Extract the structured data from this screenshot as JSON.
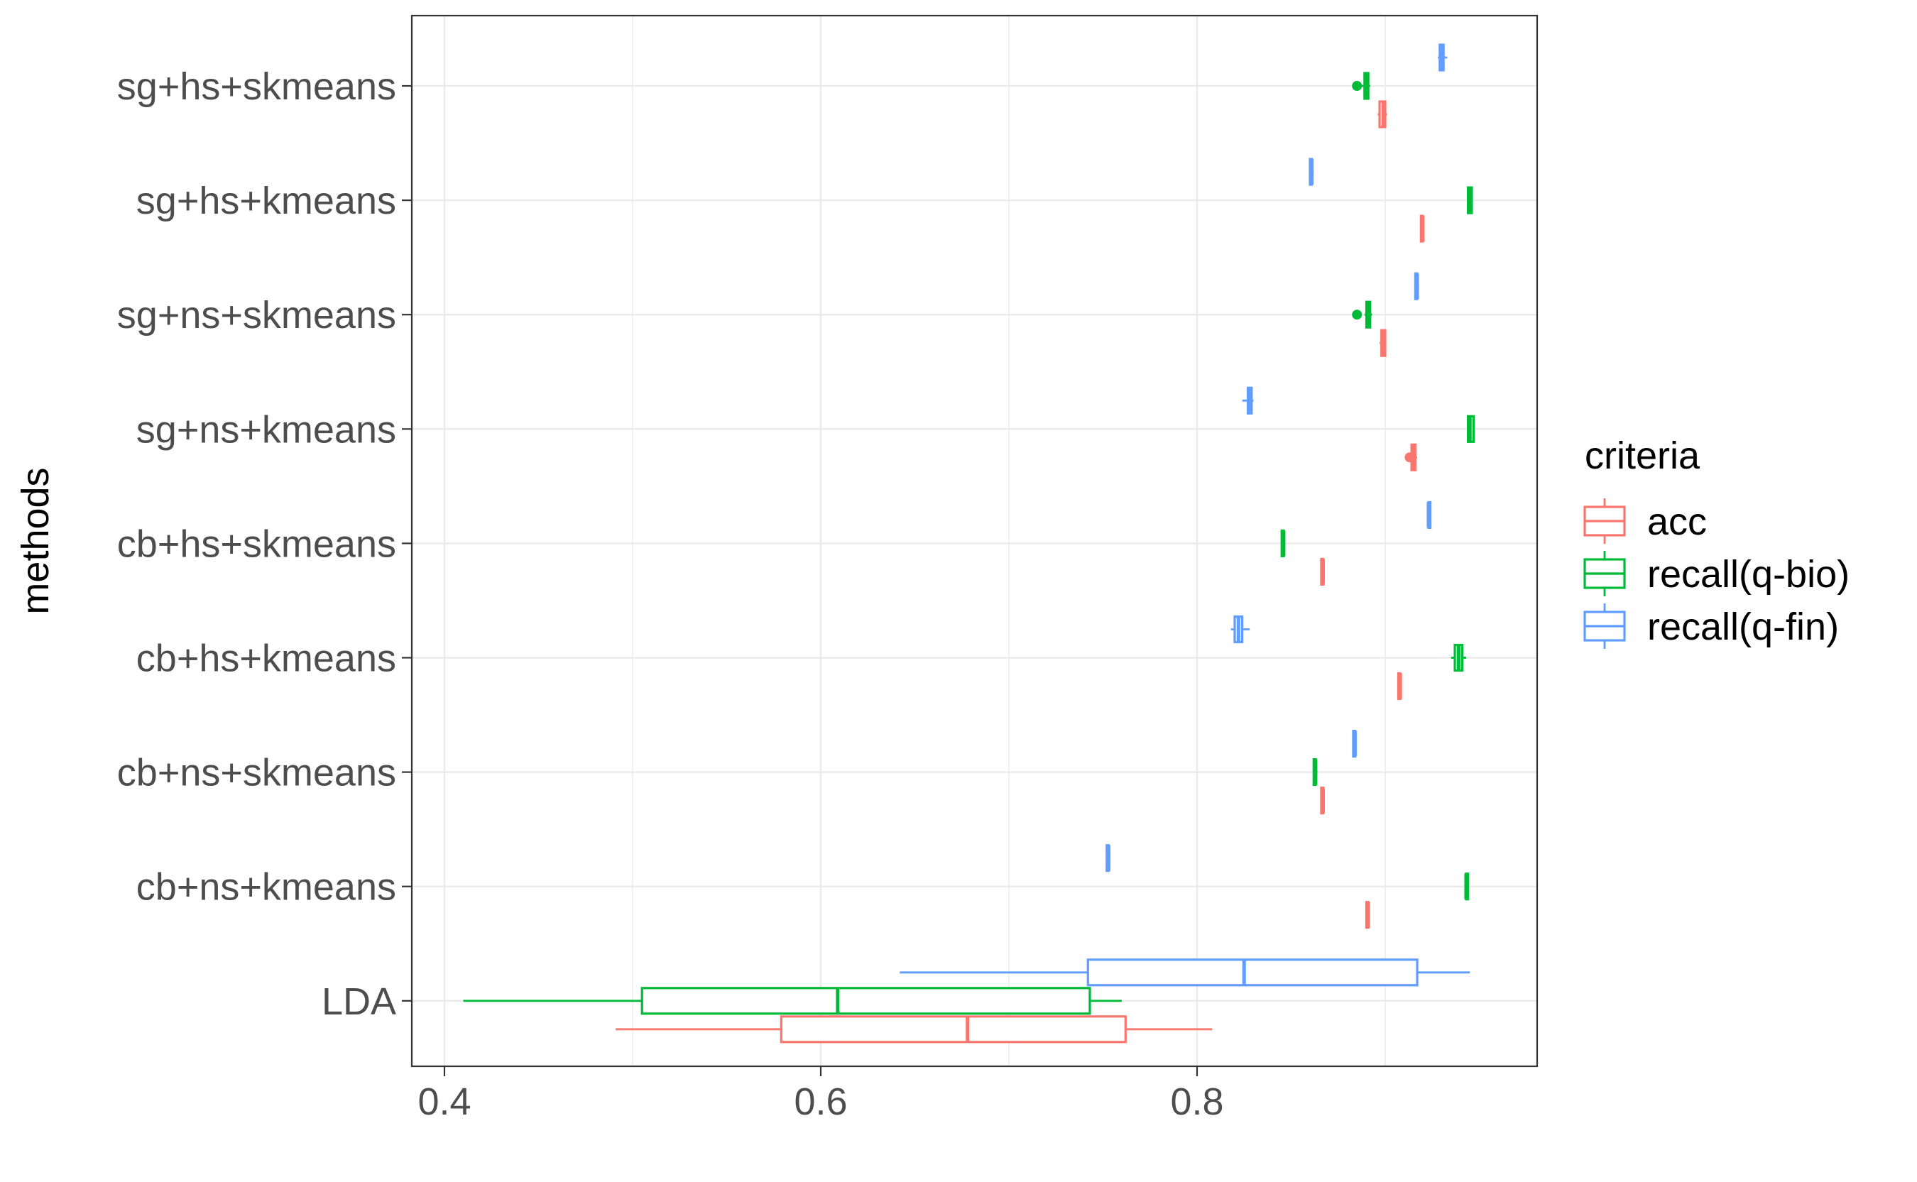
{
  "chart_data": {
    "type": "boxplot",
    "orientation": "horizontal",
    "title": "",
    "xlabel": "",
    "ylabel": "methods",
    "xlim": [
      0.38,
      0.95
    ],
    "x_ticks": [
      0.4,
      0.6,
      0.8
    ],
    "x_tick_labels": [
      "0.4",
      "0.6",
      "0.8"
    ],
    "grid": true,
    "legend": {
      "title": "criteria",
      "position": "right"
    },
    "categories": [
      "sg+hs+skmeans",
      "sg+hs+kmeans",
      "sg+ns+skmeans",
      "sg+ns+kmeans",
      "cb+hs+skmeans",
      "cb+hs+kmeans",
      "cb+ns+skmeans",
      "cb+ns+kmeans",
      "LDA"
    ],
    "series": [
      {
        "name": "acc",
        "color": "#F8766D",
        "boxes": [
          {
            "min": 0.896,
            "q1": 0.897,
            "median": 0.899,
            "q3": 0.9,
            "max": 0.901,
            "outliers": []
          },
          {
            "min": 0.919,
            "q1": 0.919,
            "median": 0.92,
            "q3": 0.92,
            "max": 0.92,
            "outliers": []
          },
          {
            "min": 0.897,
            "q1": 0.898,
            "median": 0.899,
            "q3": 0.9,
            "max": 0.9,
            "outliers": []
          },
          {
            "min": 0.913,
            "q1": 0.914,
            "median": 0.915,
            "q3": 0.916,
            "max": 0.917,
            "outliers": [
              0.913
            ]
          },
          {
            "min": 0.866,
            "q1": 0.866,
            "median": 0.867,
            "q3": 0.867,
            "max": 0.867,
            "outliers": []
          },
          {
            "min": 0.907,
            "q1": 0.907,
            "median": 0.908,
            "q3": 0.908,
            "max": 0.908,
            "outliers": []
          },
          {
            "min": 0.866,
            "q1": 0.866,
            "median": 0.867,
            "q3": 0.867,
            "max": 0.867,
            "outliers": []
          },
          {
            "min": 0.89,
            "q1": 0.89,
            "median": 0.891,
            "q3": 0.891,
            "max": 0.891,
            "outliers": []
          },
          {
            "min": 0.491,
            "q1": 0.579,
            "median": 0.678,
            "q3": 0.762,
            "max": 0.808,
            "outliers": []
          }
        ]
      },
      {
        "name": "recall(q-bio)",
        "color": "#00BA38",
        "boxes": [
          {
            "min": 0.886,
            "q1": 0.889,
            "median": 0.89,
            "q3": 0.891,
            "max": 0.892,
            "outliers": [
              0.885
            ]
          },
          {
            "min": 0.944,
            "q1": 0.944,
            "median": 0.945,
            "q3": 0.946,
            "max": 0.946,
            "outliers": []
          },
          {
            "min": 0.889,
            "q1": 0.89,
            "median": 0.891,
            "q3": 0.892,
            "max": 0.893,
            "outliers": [
              0.885
            ]
          },
          {
            "min": 0.944,
            "q1": 0.944,
            "median": 0.945,
            "q3": 0.947,
            "max": 0.947,
            "outliers": []
          },
          {
            "min": 0.845,
            "q1": 0.845,
            "median": 0.846,
            "q3": 0.846,
            "max": 0.846,
            "outliers": []
          },
          {
            "min": 0.935,
            "q1": 0.937,
            "median": 0.939,
            "q3": 0.941,
            "max": 0.943,
            "outliers": []
          },
          {
            "min": 0.862,
            "q1": 0.862,
            "median": 0.863,
            "q3": 0.863,
            "max": 0.864,
            "outliers": []
          },
          {
            "min": 0.943,
            "q1": 0.943,
            "median": 0.943,
            "q3": 0.944,
            "max": 0.944,
            "outliers": []
          },
          {
            "min": 0.41,
            "q1": 0.505,
            "median": 0.609,
            "q3": 0.743,
            "max": 0.76,
            "outliers": []
          }
        ]
      },
      {
        "name": "recall(q-fin)",
        "color": "#619CFF",
        "boxes": [
          {
            "min": 0.928,
            "q1": 0.929,
            "median": 0.93,
            "q3": 0.931,
            "max": 0.933,
            "outliers": []
          },
          {
            "min": 0.86,
            "q1": 0.86,
            "median": 0.861,
            "q3": 0.861,
            "max": 0.862,
            "outliers": []
          },
          {
            "min": 0.916,
            "q1": 0.916,
            "median": 0.917,
            "q3": 0.917,
            "max": 0.918,
            "outliers": []
          },
          {
            "min": 0.824,
            "q1": 0.827,
            "median": 0.828,
            "q3": 0.829,
            "max": 0.83,
            "outliers": []
          },
          {
            "min": 0.923,
            "q1": 0.923,
            "median": 0.923,
            "q3": 0.924,
            "max": 0.924,
            "outliers": []
          },
          {
            "min": 0.818,
            "q1": 0.82,
            "median": 0.822,
            "q3": 0.824,
            "max": 0.828,
            "outliers": []
          },
          {
            "min": 0.883,
            "q1": 0.883,
            "median": 0.884,
            "q3": 0.884,
            "max": 0.884,
            "outliers": []
          },
          {
            "min": 0.752,
            "q1": 0.752,
            "median": 0.753,
            "q3": 0.753,
            "max": 0.754,
            "outliers": []
          },
          {
            "min": 0.642,
            "q1": 0.742,
            "median": 0.825,
            "q3": 0.917,
            "max": 0.945,
            "outliers": []
          }
        ]
      }
    ]
  }
}
